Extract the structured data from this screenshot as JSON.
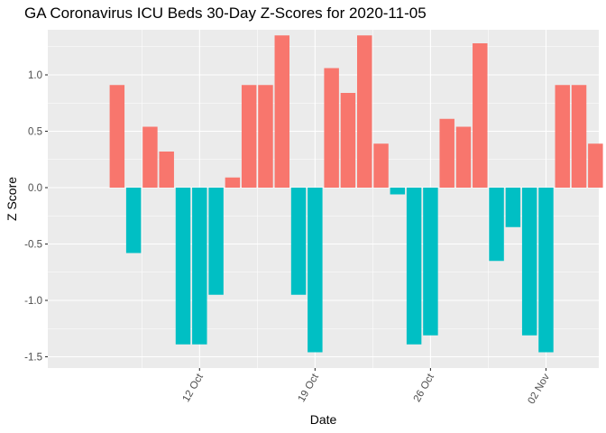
{
  "chart_data": {
    "type": "bar",
    "title": "GA Coronavirus ICU Beds 30-Day Z-Scores for 2020-11-05",
    "xlabel": "Date",
    "ylabel": "Z Score",
    "ylim": [
      -1.6,
      1.4
    ],
    "y_ticks": [
      -1.5,
      -1.0,
      -0.5,
      0.0,
      0.5,
      1.0
    ],
    "y_tick_labels": [
      "-1.5",
      "-1.0",
      "-0.5",
      "0.0",
      "0.5",
      "1.0"
    ],
    "x_tick_labels": [
      {
        "date": "2020-10-12",
        "label": "12 Oct"
      },
      {
        "date": "2020-10-19",
        "label": "19 Oct"
      },
      {
        "date": "2020-10-26",
        "label": "26 Oct"
      },
      {
        "date": "2020-11-02",
        "label": "02 Nov"
      }
    ],
    "x_range_days": [
      -4.2,
      29.2
    ],
    "start_date": "2020-10-07",
    "positive_color": "#F8766D",
    "negative_color": "#00BFC4",
    "panel_color": "#EBEBEB",
    "grid_color": "#FFFFFF",
    "dates": [
      "2020-10-07",
      "2020-10-08",
      "2020-10-09",
      "2020-10-10",
      "2020-10-11",
      "2020-10-12",
      "2020-10-13",
      "2020-10-14",
      "2020-10-15",
      "2020-10-16",
      "2020-10-17",
      "2020-10-18",
      "2020-10-19",
      "2020-10-20",
      "2020-10-21",
      "2020-10-22",
      "2020-10-23",
      "2020-10-24",
      "2020-10-25",
      "2020-10-26",
      "2020-10-27",
      "2020-10-28",
      "2020-10-29",
      "2020-10-30",
      "2020-10-31",
      "2020-11-01",
      "2020-11-02",
      "2020-11-03",
      "2020-11-04",
      "2020-11-05"
    ],
    "values": [
      0.91,
      -0.58,
      0.54,
      0.32,
      -1.39,
      -1.39,
      -0.95,
      0.09,
      0.91,
      0.91,
      1.35,
      -0.95,
      -1.46,
      1.06,
      0.84,
      1.35,
      0.39,
      -0.06,
      -1.39,
      -1.31,
      0.61,
      0.54,
      1.28,
      -0.65,
      -0.35,
      -1.31,
      -1.46,
      0.91,
      0.91,
      0.39
    ]
  }
}
